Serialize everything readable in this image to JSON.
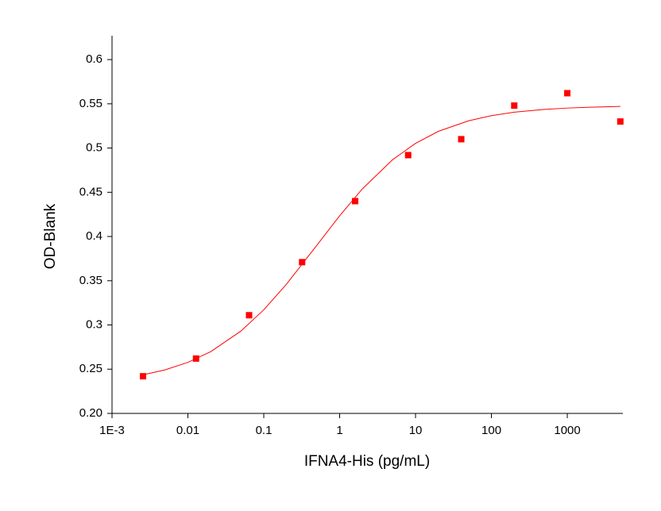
{
  "chart_data": {
    "type": "scatter",
    "xlabel": "IFNA4-His (pg/mL)",
    "ylabel": "OD-Blank",
    "xscale": "log",
    "xlim": [
      0.001,
      5400
    ],
    "ylim": [
      0.2,
      0.627
    ],
    "xticks": [
      {
        "value": 0.001,
        "label": "1E-3"
      },
      0.01,
      0.1,
      1,
      10,
      100,
      1000
    ],
    "yticks": [
      {
        "value": 0.2,
        "label": "0.20"
      },
      0.25,
      0.3,
      0.35,
      0.4,
      0.45,
      0.5,
      0.55,
      0.6
    ],
    "series": [
      {
        "type": "line",
        "color": "#ff0000",
        "x": [
          0.00256,
          0.005,
          0.01,
          0.02,
          0.05,
          0.1,
          0.2,
          0.5,
          1,
          2,
          5,
          10,
          20,
          50,
          100,
          200,
          500,
          1000,
          2000,
          5000
        ],
        "values": [
          0.2436,
          0.2492,
          0.2577,
          0.2698,
          0.2931,
          0.3171,
          0.3463,
          0.39,
          0.4234,
          0.454,
          0.4869,
          0.5053,
          0.5189,
          0.5308,
          0.5366,
          0.5405,
          0.5437,
          0.5452,
          0.5462,
          0.547
        ]
      },
      {
        "type": "scatter",
        "color": "#ff0000",
        "x": [
          0.00256,
          0.0128,
          0.064,
          0.32,
          1.6,
          8,
          40,
          200,
          1000,
          5000
        ],
        "values": [
          0.242,
          0.262,
          0.311,
          0.371,
          0.44,
          0.492,
          0.51,
          0.548,
          0.562,
          0.53
        ]
      }
    ]
  }
}
